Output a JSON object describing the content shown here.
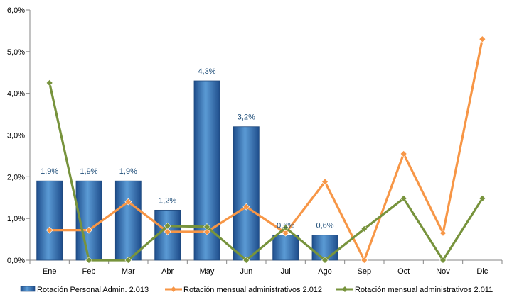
{
  "chart_data": {
    "type": "bar",
    "categories": [
      "Ene",
      "Feb",
      "Mar",
      "Abr",
      "May",
      "Jun",
      "Jul",
      "Ago",
      "Sep",
      "Oct",
      "Nov",
      "Dic"
    ],
    "ylim": [
      0,
      6
    ],
    "yticks": [
      0,
      1,
      2,
      3,
      4,
      5,
      6
    ],
    "ytick_labels": [
      "0,0%",
      "1,0%",
      "2,0%",
      "3,0%",
      "4,0%",
      "5,0%",
      "6,0%"
    ],
    "grid": false,
    "legend_position": "bottom",
    "series": [
      {
        "name": "Rotación Personal Admin. 2.013",
        "type": "bar",
        "color": "#2E75B6",
        "values": [
          1.9,
          1.9,
          1.9,
          1.2,
          4.3,
          3.2,
          0.6,
          0.6,
          null,
          null,
          null,
          null
        ],
        "labels": [
          "1,9%",
          "1,9%",
          "1,9%",
          "1,2%",
          "4,3%",
          "3,2%",
          "0,6%",
          "0,6%",
          "",
          "",
          "",
          ""
        ]
      },
      {
        "name": "Rotación mensual administrativos 2.012",
        "type": "line",
        "color": "#F79646",
        "values": [
          0.72,
          0.72,
          1.4,
          0.68,
          0.68,
          1.28,
          0.65,
          1.88,
          0.0,
          2.55,
          0.65,
          5.3
        ]
      },
      {
        "name": "Rotación mensual administrativos 2.011",
        "type": "line",
        "color": "#77933C",
        "values": [
          4.25,
          0.0,
          0.0,
          0.82,
          0.8,
          0.0,
          0.78,
          0.0,
          0.75,
          1.48,
          0.0,
          1.48
        ]
      }
    ]
  }
}
